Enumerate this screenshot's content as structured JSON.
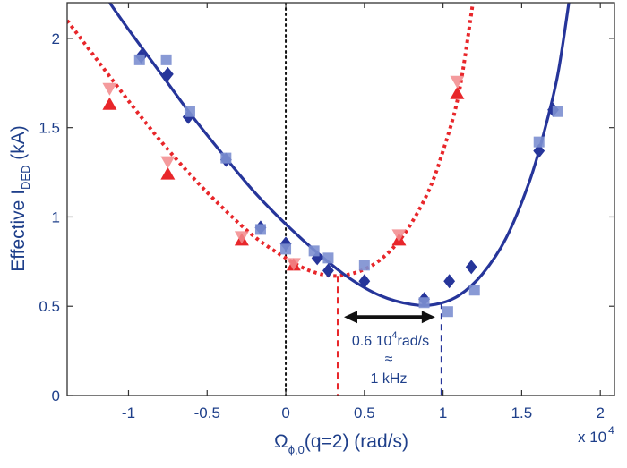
{
  "chart_data": {
    "type": "scatter",
    "title": "",
    "xlabel": {
      "main": "Ω",
      "sub": "ϕ,0",
      "rest": "(q=2) (rad/s)"
    },
    "ylabel": {
      "main": "Effective I",
      "sub": "DED",
      "rest": " (kA)"
    },
    "x_multiplier": {
      "text": "x 10",
      "exp": "4"
    },
    "xlim": [
      -1.39,
      2.09
    ],
    "ylim": [
      0,
      2.2
    ],
    "xticks": [
      -1,
      -0.5,
      0,
      0.5,
      1,
      1.5,
      2
    ],
    "xtick_labels": [
      "-1",
      "-0.5",
      "0",
      "0.5",
      "1",
      "1.5",
      "2"
    ],
    "yticks": [
      0,
      0.5,
      1,
      1.5,
      2
    ],
    "ytick_labels": [
      "0",
      "0.5",
      "1",
      "1.5",
      "2"
    ],
    "grid": false,
    "colors": {
      "red": "#e8262a",
      "red_light": "#f28a8c",
      "blue": "#26359a",
      "blue_light": "#7c8fd0",
      "axis_text": "#1e3f8a",
      "black": "#111111"
    },
    "series": [
      {
        "name": "red-triangle-up",
        "marker": "triangle-up",
        "color": "red",
        "points": [
          [
            -1.12,
            1.63
          ],
          [
            -0.75,
            1.24
          ],
          [
            -0.28,
            0.87
          ],
          [
            0.05,
            0.73
          ],
          [
            0.72,
            0.87
          ],
          [
            1.09,
            1.69
          ]
        ]
      },
      {
        "name": "red-triangle-down",
        "marker": "triangle-down",
        "color": "red_light",
        "points": [
          [
            -1.12,
            1.72
          ],
          [
            -0.75,
            1.31
          ],
          [
            -0.28,
            0.89
          ],
          [
            0.05,
            0.74
          ],
          [
            0.72,
            0.9
          ],
          [
            1.09,
            1.76
          ]
        ]
      },
      {
        "name": "blue-diamond",
        "marker": "diamond",
        "color": "blue",
        "points": [
          [
            -0.92,
            1.9
          ],
          [
            -0.75,
            1.8
          ],
          [
            -0.62,
            1.56
          ],
          [
            -0.38,
            1.32
          ],
          [
            -0.16,
            0.94
          ],
          [
            0.0,
            0.85
          ],
          [
            0.2,
            0.77
          ],
          [
            0.27,
            0.7
          ],
          [
            0.5,
            0.64
          ],
          [
            0.88,
            0.54
          ],
          [
            1.04,
            0.64
          ],
          [
            1.18,
            0.72
          ],
          [
            1.61,
            1.37
          ],
          [
            1.7,
            1.6
          ]
        ]
      },
      {
        "name": "blue-square",
        "marker": "square",
        "color": "blue_light",
        "points": [
          [
            -0.93,
            1.88
          ],
          [
            -0.76,
            1.88
          ],
          [
            -0.61,
            1.59
          ],
          [
            -0.38,
            1.33
          ],
          [
            -0.16,
            0.93
          ],
          [
            0.0,
            0.82
          ],
          [
            0.18,
            0.81
          ],
          [
            0.27,
            0.77
          ],
          [
            0.5,
            0.73
          ],
          [
            0.88,
            0.52
          ],
          [
            1.03,
            0.47
          ],
          [
            1.2,
            0.59
          ],
          [
            1.61,
            1.42
          ],
          [
            1.73,
            1.59
          ]
        ]
      }
    ],
    "fits": [
      {
        "name": "red-fit",
        "style": "dotted",
        "color": "red",
        "points": [
          [
            -1.39,
            2.1
          ],
          [
            -1.2,
            1.88
          ],
          [
            -1.0,
            1.65
          ],
          [
            -0.8,
            1.43
          ],
          [
            -0.6,
            1.23
          ],
          [
            -0.4,
            1.05
          ],
          [
            -0.2,
            0.89
          ],
          [
            0.0,
            0.77
          ],
          [
            0.15,
            0.7
          ],
          [
            0.3,
            0.67
          ],
          [
            0.45,
            0.69
          ],
          [
            0.6,
            0.76
          ],
          [
            0.75,
            0.9
          ],
          [
            0.9,
            1.13
          ],
          [
            1.0,
            1.37
          ],
          [
            1.1,
            1.69
          ],
          [
            1.19,
            2.2
          ]
        ]
      },
      {
        "name": "blue-fit",
        "style": "solid",
        "color": "blue",
        "points": [
          [
            -1.12,
            2.2
          ],
          [
            -1.0,
            2.05
          ],
          [
            -0.8,
            1.81
          ],
          [
            -0.6,
            1.57
          ],
          [
            -0.4,
            1.35
          ],
          [
            -0.2,
            1.14
          ],
          [
            0.0,
            0.96
          ],
          [
            0.2,
            0.8
          ],
          [
            0.4,
            0.66
          ],
          [
            0.6,
            0.56
          ],
          [
            0.8,
            0.51
          ],
          [
            0.95,
            0.51
          ],
          [
            1.1,
            0.56
          ],
          [
            1.25,
            0.68
          ],
          [
            1.4,
            0.88
          ],
          [
            1.55,
            1.2
          ],
          [
            1.65,
            1.5
          ],
          [
            1.73,
            1.8
          ],
          [
            1.8,
            2.2
          ]
        ]
      }
    ],
    "reference_lines": [
      {
        "name": "zero-line",
        "x": 0,
        "style": "dotted",
        "color": "black"
      },
      {
        "name": "red-minimum-line",
        "x": 0.33,
        "y_top": 0.67,
        "style": "dashed",
        "color": "red"
      },
      {
        "name": "blue-minimum-line",
        "x": 0.99,
        "y_top": 0.52,
        "style": "dashed",
        "color": "blue"
      }
    ],
    "annotation": {
      "arrow": {
        "from_x": 0.37,
        "to_x": 0.95,
        "y": 0.44
      },
      "line1": "0.6 10",
      "line1_exp": "4",
      "line1_unit": "rad/s",
      "approx": "≈",
      "line2": "1 kHz"
    }
  }
}
